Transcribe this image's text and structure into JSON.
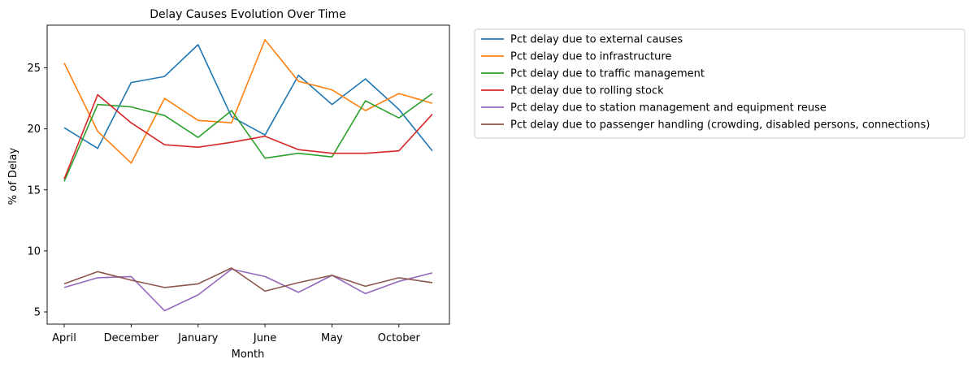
{
  "chart_data": {
    "type": "line",
    "title": "Delay Causes Evolution Over Time",
    "xlabel": "Month",
    "ylabel": "% of Delay",
    "x_tick_labels": [
      "April",
      "December",
      "January",
      "June",
      "May",
      "October"
    ],
    "x_tick_indices": [
      0,
      2,
      4,
      6,
      8,
      10
    ],
    "categories": [
      "April",
      "",
      "December",
      "",
      "January",
      "",
      "June",
      "",
      "May",
      "",
      "October",
      ""
    ],
    "ylim": [
      4,
      28.5
    ],
    "yticks": [
      5,
      10,
      15,
      20,
      25
    ],
    "grid": false,
    "legend_position": "outside-right",
    "series": [
      {
        "name": "Pct delay due to external causes",
        "color": "#1f77b4",
        "values": [
          20.1,
          18.4,
          23.8,
          24.3,
          26.9,
          21.0,
          19.5,
          24.4,
          22.0,
          24.1,
          21.6,
          18.2
        ]
      },
      {
        "name": "Pct delay due to infrastructure",
        "color": "#ff7f0e",
        "values": [
          25.4,
          19.8,
          17.2,
          22.5,
          20.7,
          20.5,
          27.3,
          23.9,
          23.2,
          21.5,
          22.9,
          22.1
        ]
      },
      {
        "name": "Pct delay due to traffic management",
        "color": "#2ca02c",
        "values": [
          15.7,
          22.0,
          21.8,
          21.1,
          19.3,
          21.5,
          17.6,
          18.0,
          17.7,
          22.3,
          20.9,
          22.9
        ]
      },
      {
        "name": "Pct delay due to rolling stock",
        "color": "#d62728",
        "values": [
          15.9,
          22.8,
          20.5,
          18.7,
          18.5,
          18.9,
          19.4,
          18.3,
          18.0,
          18.0,
          18.2,
          21.2
        ]
      },
      {
        "name": "Pct delay due to station management and equipment reuse",
        "color": "#9467bd",
        "values": [
          7.0,
          7.8,
          7.9,
          5.1,
          6.4,
          8.5,
          7.9,
          6.6,
          8.0,
          6.5,
          7.5,
          8.2
        ]
      },
      {
        "name": "Pct delay due to passenger handling (crowding, disabled persons, connections)",
        "color": "#8c564b",
        "values": [
          7.3,
          8.3,
          7.6,
          7.0,
          7.3,
          8.6,
          6.7,
          7.4,
          8.0,
          7.1,
          7.8,
          7.4
        ]
      }
    ]
  }
}
